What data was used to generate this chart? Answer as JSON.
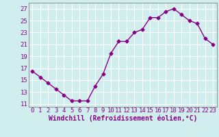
{
  "x": [
    0,
    1,
    2,
    3,
    4,
    5,
    6,
    7,
    8,
    9,
    10,
    11,
    12,
    13,
    14,
    15,
    16,
    17,
    18,
    19,
    20,
    21,
    22,
    23
  ],
  "y": [
    16.5,
    15.5,
    14.5,
    13.5,
    12.5,
    11.5,
    11.5,
    11.5,
    14.0,
    16.0,
    19.5,
    21.5,
    21.5,
    23.0,
    23.5,
    25.5,
    25.5,
    26.5,
    27.0,
    26.0,
    25.0,
    24.5,
    22.0,
    21.0
  ],
  "color": "#880088",
  "bg_color": "#d0eeee",
  "grid_color": "#ffffff",
  "xlabel": "Windchill (Refroidissement éolien,°C)",
  "yticks": [
    11,
    13,
    15,
    17,
    19,
    21,
    23,
    25,
    27
  ],
  "xticks": [
    0,
    1,
    2,
    3,
    4,
    5,
    6,
    7,
    8,
    9,
    10,
    11,
    12,
    13,
    14,
    15,
    16,
    17,
    18,
    19,
    20,
    21,
    22,
    23
  ],
  "xlim": [
    -0.5,
    23.5
  ],
  "ylim": [
    10.5,
    28.0
  ],
  "xlabel_fontsize": 7,
  "tick_fontsize": 6.5,
  "marker": "D",
  "markersize": 2.5,
  "linewidth": 1.0
}
